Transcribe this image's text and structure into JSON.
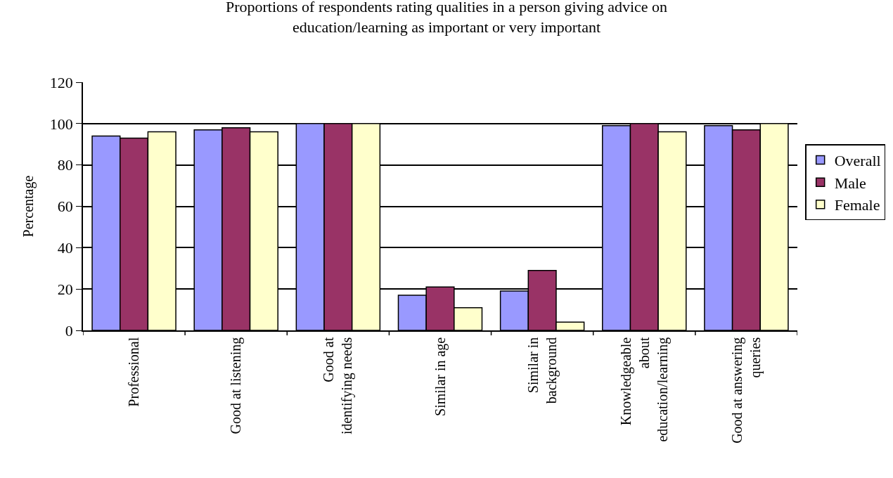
{
  "chart_data": {
    "type": "bar",
    "title": "Proportions of respondents rating qualities in a person giving advice on\neducation/learning as important or very important",
    "ylabel": "Percentage",
    "categories": [
      "Professional",
      "Good at listening",
      "Good at identifying needs",
      "Similar in age",
      "Similar in background",
      "Knowledgeable about education/learning",
      "Good at answering queries"
    ],
    "series": [
      {
        "name": "Overall",
        "color": "#9999ff",
        "values": [
          94,
          97,
          100,
          17,
          19,
          99,
          99
        ]
      },
      {
        "name": "Male",
        "color": "#993366",
        "values": [
          93,
          98,
          100,
          21,
          29,
          100,
          97
        ]
      },
      {
        "name": "Female",
        "color": "#ffffcc",
        "values": [
          96,
          96,
          100,
          11,
          4,
          96,
          100
        ]
      }
    ],
    "ylim": [
      0,
      120
    ],
    "yticks": [
      0,
      20,
      40,
      60,
      80,
      100,
      120
    ],
    "grid": "y",
    "legend": "right"
  }
}
